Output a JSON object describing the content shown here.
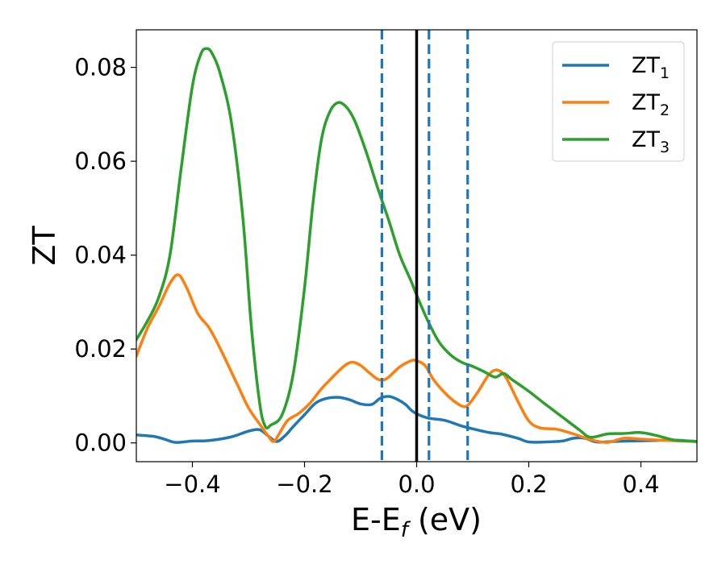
{
  "chart_data": {
    "type": "line",
    "xlabel": "E-E",
    "xlabel_sub": "f",
    "xlabel_unit": " (eV)",
    "ylabel": "ZT",
    "xlim": [
      -0.5,
      0.5
    ],
    "ylim": [
      -0.004,
      0.088
    ],
    "xticks": [
      -0.4,
      -0.2,
      0.0,
      0.2,
      0.4
    ],
    "xtick_labels": [
      "−0.4",
      "−0.2",
      "0.0",
      "0.2",
      "0.4"
    ],
    "yticks": [
      0.0,
      0.02,
      0.04,
      0.06,
      0.08
    ],
    "ytick_labels": [
      "0.00",
      "0.02",
      "0.04",
      "0.06",
      "0.08"
    ],
    "grid": false,
    "legend_position": "top-right",
    "vlines": [
      {
        "x": 0.0,
        "color": "#000000",
        "style": "solid"
      },
      {
        "x": -0.062,
        "color": "#1f77b4",
        "style": "dashed"
      },
      {
        "x": 0.022,
        "color": "#1f77b4",
        "style": "dashed"
      },
      {
        "x": 0.091,
        "color": "#1f77b4",
        "style": "dashed"
      }
    ],
    "series": [
      {
        "name": "ZT",
        "subscript": "1",
        "color": "#1f77b4",
        "x": [
          -0.5,
          -0.47,
          -0.45,
          -0.43,
          -0.4,
          -0.37,
          -0.33,
          -0.3,
          -0.28,
          -0.265,
          -0.25,
          -0.235,
          -0.22,
          -0.2,
          -0.18,
          -0.16,
          -0.14,
          -0.12,
          -0.1,
          -0.08,
          -0.065,
          -0.05,
          -0.035,
          -0.02,
          -0.01,
          0.0,
          0.02,
          0.05,
          0.08,
          0.1,
          0.13,
          0.15,
          0.18,
          0.2,
          0.23,
          0.26,
          0.28,
          0.3,
          0.32,
          0.35,
          0.38,
          0.42,
          0.46,
          0.5
        ],
        "y": [
          0.0017,
          0.0014,
          0.0008,
          0.0001,
          0.0004,
          0.0005,
          0.0013,
          0.0025,
          0.0028,
          0.0015,
          0.0003,
          0.0015,
          0.0035,
          0.006,
          0.0085,
          0.0095,
          0.0097,
          0.0092,
          0.0083,
          0.0082,
          0.0095,
          0.0099,
          0.0093,
          0.0082,
          0.007,
          0.0062,
          0.0053,
          0.0048,
          0.0036,
          0.003,
          0.0022,
          0.0019,
          0.001,
          0.0002,
          0.0002,
          0.0004,
          0.001,
          0.001,
          0.0002,
          0.0003,
          0.0004,
          0.0005,
          0.0006,
          0.0003
        ]
      },
      {
        "name": "ZT",
        "subscript": "2",
        "color": "#ff7f0e",
        "x": [
          -0.5,
          -0.48,
          -0.46,
          -0.44,
          -0.425,
          -0.41,
          -0.39,
          -0.37,
          -0.35,
          -0.32,
          -0.3,
          -0.28,
          -0.265,
          -0.255,
          -0.245,
          -0.23,
          -0.21,
          -0.19,
          -0.17,
          -0.15,
          -0.13,
          -0.115,
          -0.1,
          -0.085,
          -0.07,
          -0.06,
          -0.05,
          -0.03,
          -0.01,
          0.0,
          0.015,
          0.03,
          0.05,
          0.07,
          0.085,
          0.095,
          0.11,
          0.13,
          0.145,
          0.16,
          0.18,
          0.2,
          0.22,
          0.25,
          0.28,
          0.31,
          0.34,
          0.37,
          0.4,
          0.45,
          0.5
        ],
        "y": [
          0.0185,
          0.0245,
          0.029,
          0.034,
          0.0358,
          0.033,
          0.0275,
          0.0245,
          0.02,
          0.0125,
          0.0075,
          0.004,
          0.0015,
          0.0003,
          0.002,
          0.0048,
          0.0063,
          0.0085,
          0.0115,
          0.014,
          0.0163,
          0.0172,
          0.0165,
          0.015,
          0.0136,
          0.0134,
          0.014,
          0.0162,
          0.0175,
          0.0175,
          0.0165,
          0.0135,
          0.0107,
          0.0086,
          0.0077,
          0.0085,
          0.011,
          0.0147,
          0.0155,
          0.0138,
          0.009,
          0.0047,
          0.0032,
          0.0029,
          0.0019,
          0.0007,
          0.0001,
          0.001,
          0.0008,
          0.0005,
          0.0003
        ]
      },
      {
        "name": "ZT",
        "subscript": "3",
        "color": "#2ca02c",
        "x": [
          -0.5,
          -0.48,
          -0.46,
          -0.44,
          -0.42,
          -0.4,
          -0.385,
          -0.375,
          -0.365,
          -0.35,
          -0.33,
          -0.31,
          -0.295,
          -0.28,
          -0.27,
          -0.26,
          -0.24,
          -0.22,
          -0.2,
          -0.185,
          -0.17,
          -0.155,
          -0.14,
          -0.125,
          -0.11,
          -0.09,
          -0.07,
          -0.05,
          -0.03,
          -0.01,
          0.0,
          0.02,
          0.04,
          0.06,
          0.08,
          0.1,
          0.12,
          0.14,
          0.155,
          0.17,
          0.2,
          0.23,
          0.26,
          0.29,
          0.31,
          0.34,
          0.37,
          0.4,
          0.43,
          0.46,
          0.5
        ],
        "y": [
          0.022,
          0.026,
          0.031,
          0.04,
          0.0585,
          0.076,
          0.0828,
          0.084,
          0.083,
          0.0785,
          0.068,
          0.048,
          0.025,
          0.0085,
          0.0035,
          0.0038,
          0.006,
          0.0148,
          0.033,
          0.051,
          0.0645,
          0.0705,
          0.0725,
          0.0715,
          0.0685,
          0.062,
          0.0545,
          0.0475,
          0.04,
          0.0345,
          0.0315,
          0.026,
          0.0215,
          0.0188,
          0.0172,
          0.0163,
          0.0152,
          0.014,
          0.0148,
          0.0135,
          0.011,
          0.0082,
          0.0055,
          0.0028,
          0.0012,
          0.0019,
          0.002,
          0.0022,
          0.0015,
          0.0006,
          0.0003
        ]
      }
    ]
  }
}
